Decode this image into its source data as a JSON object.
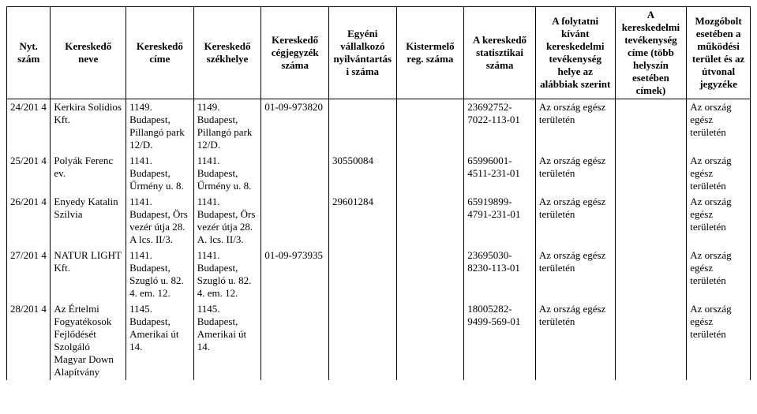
{
  "headers": [
    "Nyt. szám",
    "Kereskedő neve",
    "Kereskedő címe",
    "Kereskedő székhelye",
    "Kereskedő cégjegyzék száma",
    "Egyéni vállalkozó nyilvántartási száma",
    "Kistermelő reg. száma",
    "A kereskedő statisztikai száma",
    "A folytatni kívánt kereskedelmi tevékenység helye az alábbiak szerint",
    "A kereskedelmi tevékenység címe (több helyszín esetében címek)",
    "Mozgóbolt esetében a működési terület és az útvonal jegyzéke"
  ],
  "rows": [
    {
      "c0": "24/201 4",
      "c1": "Kerkira Solidios Kft.",
      "c2": "1149. Budapest, Pillangó park 12/D.",
      "c3": "1149. Budapest, Pillangó park 12/D.",
      "c4": "01-09-973820",
      "c5": "",
      "c6": "",
      "c7": "23692752-7022-113-01",
      "c8": "Az ország egész területén",
      "c9": "",
      "c10": "Az ország egész területén"
    },
    {
      "c0": "25/201 4",
      "c1": "Polyák Ferenc ev.",
      "c2": "1141. Budapest, Űrmény u. 8.",
      "c3": "1141. Budapest, Űrmény u. 8.",
      "c4": "",
      "c5": "30550084",
      "c6": "",
      "c7": "65996001-4511-231-01",
      "c8": "Az ország egész területén",
      "c9": "",
      "c10": "Az ország egész területén"
    },
    {
      "c0": "26/201 4",
      "c1": "Enyedy Katalin Szilvia",
      "c2": "1141. Budapest, Örs vezér útja 28. A lcs. II/3.",
      "c3": "1141. Budapest, Örs vezér útja 28. A. lcs. II/3.",
      "c4": "",
      "c5": "29601284",
      "c6": "",
      "c7": "65919899-4791-231-01",
      "c8": "Az ország egész területén",
      "c9": "",
      "c10": "Az ország egész területén"
    },
    {
      "c0": "27/201 4",
      "c1": "NATUR LIGHT Kft.",
      "c2": "1141. Budapest, Szugló u. 82. 4. em. 12.",
      "c3": "1141. Budapest, Szugló u. 82. 4. em. 12.",
      "c4": "01-09-973935",
      "c5": "",
      "c6": "",
      "c7": "23695030-8230-113-01",
      "c8": "Az ország egész területén",
      "c9": "",
      "c10": "Az ország egész területén"
    },
    {
      "c0": "28/201 4",
      "c1": "Az Értelmi Fogyatékosok Fejlődését Szolgáló Magyar Down Alapítvány",
      "c2": "1145. Budapest, Amerikai út 14.",
      "c3": "1145. Budapest, Amerikai út 14.",
      "c4": "",
      "c5": "",
      "c6": "",
      "c7": "18005282-9499-569-01",
      "c8": "Az ország egész területén",
      "c9": "",
      "c10": "Az ország egész területén"
    }
  ]
}
